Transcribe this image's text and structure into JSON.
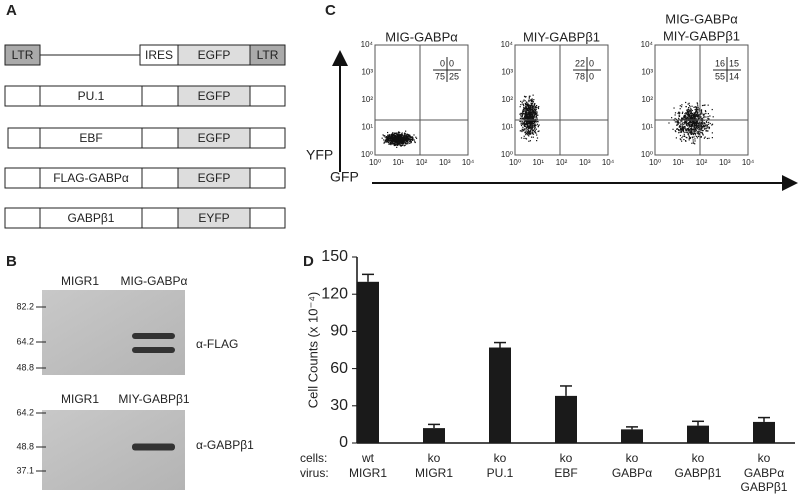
{
  "panel_a": {
    "label": "A",
    "constructs": [
      [
        "LTR",
        "IRES",
        "EGFP",
        "LTR"
      ],
      [
        "PU.1",
        "EGFP"
      ],
      [
        "EBF",
        "EGFP"
      ],
      [
        "FLAG-GABPα",
        "EGFP"
      ],
      [
        "GABPβ1",
        "EYFP"
      ]
    ]
  },
  "panel_b": {
    "label": "B",
    "blots": [
      {
        "lanes": [
          "MIGR1",
          "MIG-GABPα"
        ],
        "markers": [
          "82.2",
          "64.2",
          "48.8"
        ],
        "antibody": "α-FLAG"
      },
      {
        "lanes": [
          "MIGR1",
          "MIY-GABPβ1"
        ],
        "markers": [
          "64.2",
          "48.8",
          "37.1"
        ],
        "antibody": "α-GABPβ1"
      }
    ]
  },
  "panel_c": {
    "label": "C",
    "y_label": "YFP",
    "x_label": "GFP",
    "ticks": [
      "10⁰",
      "10¹",
      "10²",
      "10³",
      "10⁴"
    ],
    "plots": [
      {
        "title": [
          "MIG-GABPα"
        ],
        "quadrants": [
          "0",
          "0",
          "75",
          "25"
        ]
      },
      {
        "title": [
          "MIY-GABPβ1"
        ],
        "quadrants": [
          "22",
          "0",
          "78",
          "0"
        ]
      },
      {
        "title": [
          "MIG-GABPα",
          "MIY-GABPβ1"
        ],
        "quadrants": [
          "16",
          "15",
          "55",
          "14"
        ]
      }
    ]
  },
  "panel_d": {
    "label": "D",
    "row_labels": [
      "cells:",
      "virus:"
    ],
    "chart_data": {
      "type": "bar",
      "ylabel": "Cell Counts (x 10⁻⁴)",
      "cells": [
        "wt",
        "ko",
        "ko",
        "ko",
        "ko",
        "ko",
        "ko"
      ],
      "virus": [
        [
          "MIGR1"
        ],
        [
          "MIGR1"
        ],
        [
          "PU.1"
        ],
        [
          "EBF"
        ],
        [
          "GABPα"
        ],
        [
          "GABPβ1"
        ],
        [
          "GABPα",
          "GABPβ1"
        ]
      ],
      "values": [
        130,
        12,
        77,
        38,
        11,
        14,
        17
      ],
      "errors": [
        6,
        3,
        4,
        8,
        2,
        3.5,
        3.5
      ],
      "color": "#1a1a1a",
      "ylim": [
        0,
        150
      ],
      "yticks": [
        0,
        30,
        60,
        90,
        120,
        150
      ]
    }
  }
}
